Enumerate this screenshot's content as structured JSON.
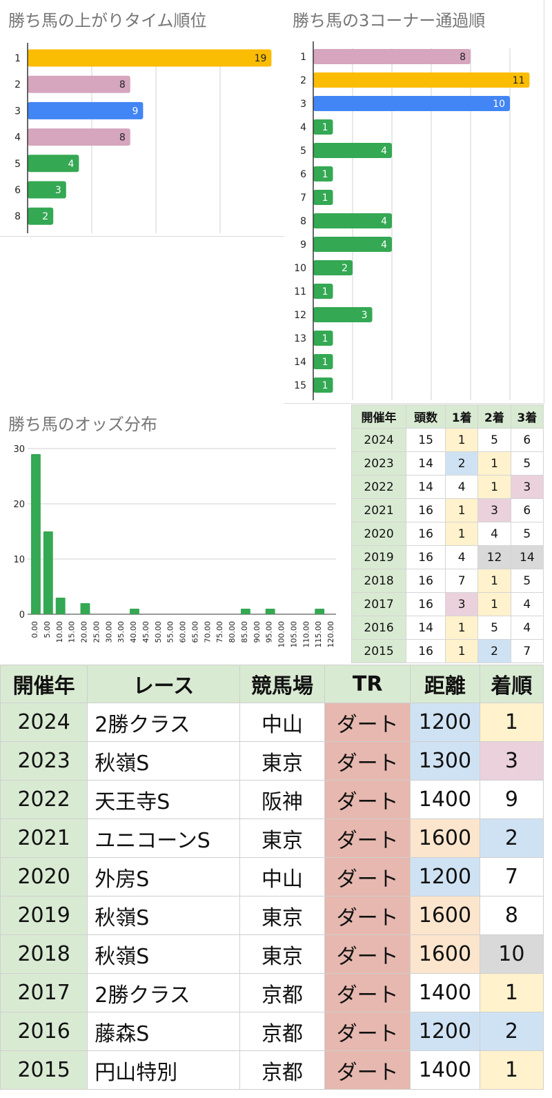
{
  "colors": {
    "gold": "#fbbc04",
    "pink": "#d5a6bd",
    "blue": "#4285f4",
    "green": "#34a853"
  },
  "chart_data": [
    {
      "type": "bar",
      "orientation": "horizontal",
      "title": "勝ち馬の上がりタイム順位",
      "categories": [
        "1",
        "2",
        "3",
        "4",
        "5",
        "6",
        "8"
      ],
      "values": [
        19,
        8,
        9,
        8,
        4,
        3,
        2
      ],
      "bar_colors": [
        "gold",
        "pink",
        "blue",
        "pink",
        "green",
        "green",
        "green"
      ],
      "xlim": [
        0,
        20
      ],
      "grid": true
    },
    {
      "type": "bar",
      "orientation": "horizontal",
      "title": "勝ち馬の3コーナー通過順",
      "categories": [
        "1",
        "2",
        "3",
        "4",
        "5",
        "6",
        "7",
        "8",
        "9",
        "10",
        "11",
        "12",
        "13",
        "14",
        "15"
      ],
      "values": [
        8,
        11,
        10,
        1,
        4,
        1,
        1,
        4,
        4,
        2,
        1,
        3,
        1,
        1,
        1
      ],
      "bar_colors": [
        "pink",
        "gold",
        "blue",
        "green",
        "green",
        "green",
        "green",
        "green",
        "green",
        "green",
        "green",
        "green",
        "green",
        "green",
        "green"
      ],
      "xlim": [
        0,
        11
      ],
      "grid": true
    },
    {
      "type": "bar",
      "title": "勝ち馬のオッズ分布",
      "categories": [
        "0.00",
        "5.00",
        "10.00",
        "15.00",
        "20.00",
        "25.00",
        "30.00",
        "35.00",
        "40.00",
        "45.00",
        "50.00",
        "55.00",
        "60.00",
        "65.00",
        "70.00",
        "75.00",
        "80.00",
        "85.00",
        "90.00",
        "95.00",
        "100.00",
        "105.00",
        "110.00",
        "115.00",
        "120.00"
      ],
      "values": [
        29,
        15,
        3,
        0,
        2,
        0,
        0,
        0,
        1,
        0,
        0,
        0,
        0,
        0,
        0,
        0,
        0,
        1,
        0,
        1,
        0,
        0,
        0,
        1,
        0
      ],
      "yticks": [
        0,
        10,
        20,
        30
      ],
      "ylim": [
        0,
        30
      ],
      "grid": true
    }
  ],
  "order_table": {
    "headers": [
      "開催年",
      "頭数",
      "1着",
      "2着",
      "3着"
    ],
    "rows": [
      [
        "2024",
        "15",
        "1",
        "5",
        "6"
      ],
      [
        "2023",
        "14",
        "2",
        "1",
        "5"
      ],
      [
        "2022",
        "14",
        "4",
        "1",
        "3"
      ],
      [
        "2021",
        "16",
        "1",
        "3",
        "6"
      ],
      [
        "2020",
        "16",
        "1",
        "4",
        "5"
      ],
      [
        "2019",
        "16",
        "4",
        "12",
        "14"
      ],
      [
        "2018",
        "16",
        "7",
        "1",
        "5"
      ],
      [
        "2017",
        "16",
        "3",
        "1",
        "4"
      ],
      [
        "2016",
        "14",
        "1",
        "5",
        "4"
      ],
      [
        "2015",
        "16",
        "1",
        "2",
        "7"
      ]
    ]
  },
  "last_race_table": {
    "headers": [
      "開催年",
      "レース",
      "競馬場",
      "TR",
      "距離",
      "着順"
    ],
    "rows": [
      [
        "2024",
        "2勝クラス",
        "中山",
        "ダート",
        "1200",
        "1"
      ],
      [
        "2023",
        "秋嶺S",
        "東京",
        "ダート",
        "1300",
        "3"
      ],
      [
        "2022",
        "天王寺S",
        "阪神",
        "ダート",
        "1400",
        "9"
      ],
      [
        "2021",
        "ユニコーンS",
        "東京",
        "ダート",
        "1600",
        "2"
      ],
      [
        "2020",
        "外房S",
        "中山",
        "ダート",
        "1200",
        "7"
      ],
      [
        "2019",
        "秋嶺S",
        "東京",
        "ダート",
        "1600",
        "8"
      ],
      [
        "2018",
        "秋嶺S",
        "東京",
        "ダート",
        "1600",
        "10"
      ],
      [
        "2017",
        "2勝クラス",
        "京都",
        "ダート",
        "1400",
        "1"
      ],
      [
        "2016",
        "藤森S",
        "京都",
        "ダート",
        "1200",
        "2"
      ],
      [
        "2015",
        "円山特別",
        "京都",
        "ダート",
        "1400",
        "1"
      ]
    ]
  }
}
